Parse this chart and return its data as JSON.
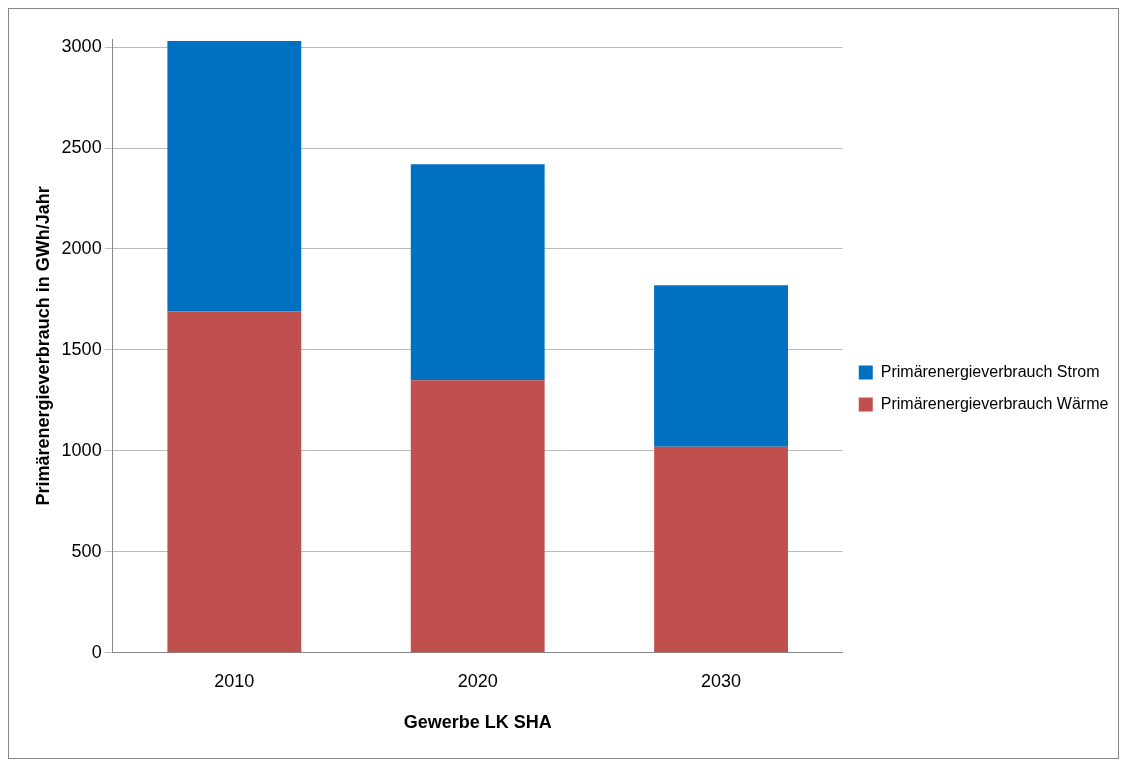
{
  "chart_data": {
    "type": "bar",
    "xlabel": "Gewerbe LK SHA",
    "ylabel": "Primärenergieverbrauch in GWh/Jahr",
    "categories": [
      "2010",
      "2020",
      "2030"
    ],
    "series": [
      {
        "name": "Primärenergieverbrauch Wärme",
        "color": "#c0504d",
        "values": [
          1690,
          1350,
          1020
        ]
      },
      {
        "name": "Primärenergieverbrauch Strom",
        "color": "#0070c0",
        "values": [
          1340,
          1070,
          800
        ]
      }
    ],
    "stacked": true,
    "ylim": [
      0,
      3040
    ],
    "yticks": [
      0,
      500,
      1000,
      1500,
      2000,
      2500,
      3000
    ],
    "grid": "y",
    "legend": "right"
  }
}
